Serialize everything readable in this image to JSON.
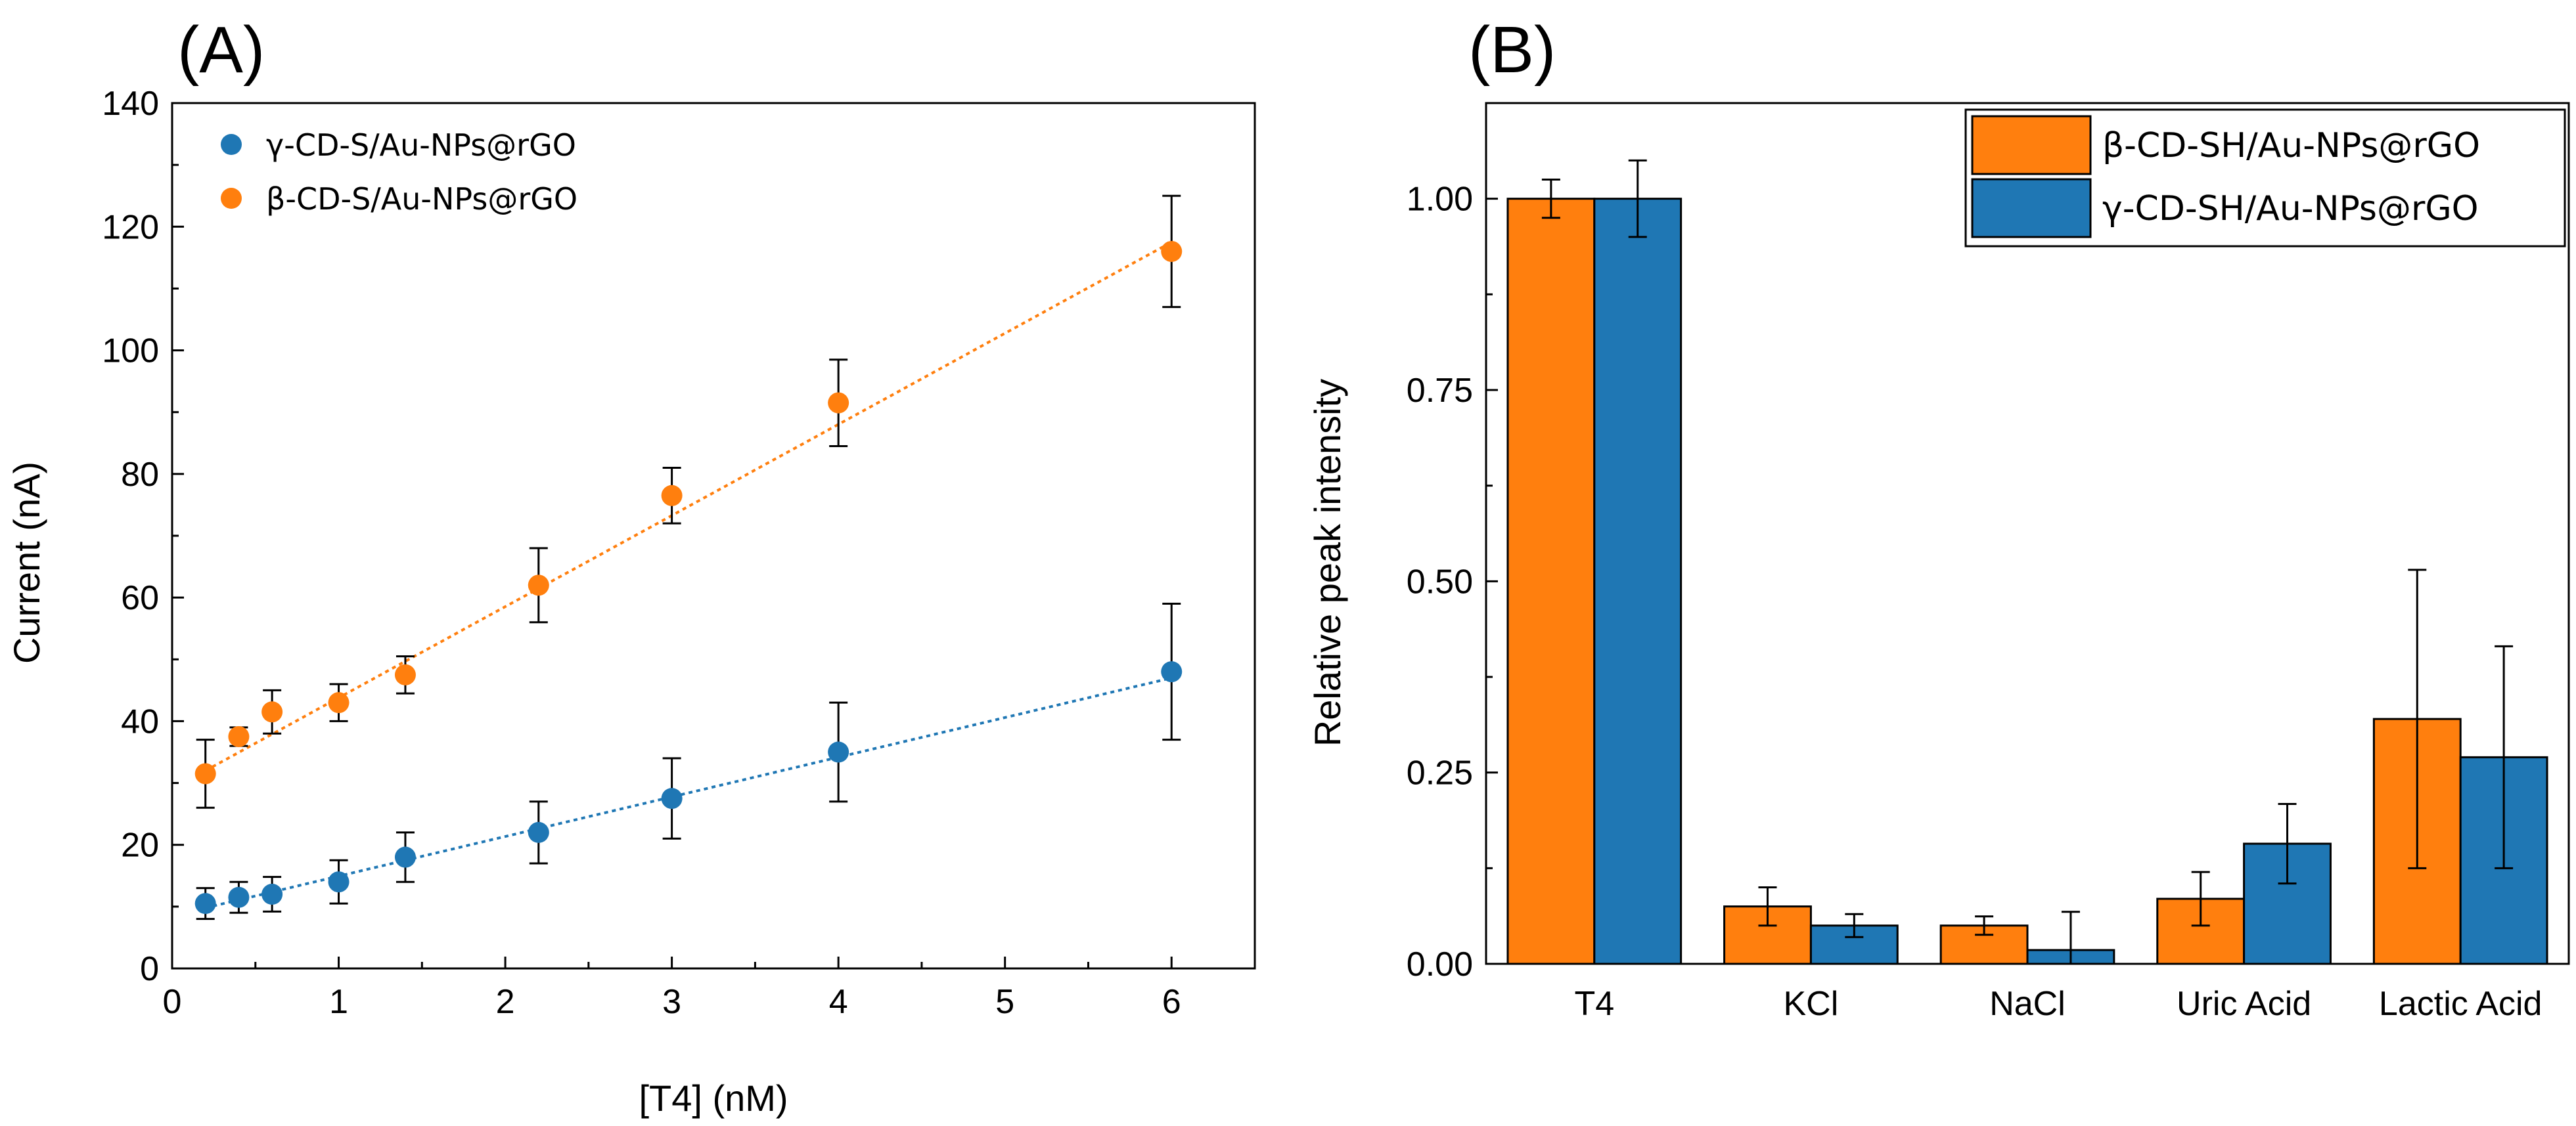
{
  "colors": {
    "orange": "#FF7F0E",
    "blue": "#1F77B4",
    "axis": "#000000"
  },
  "chart_data": [
    {
      "panel_label": "(A)",
      "type": "scatter",
      "title": "",
      "xlabel": "[T4] (nM)",
      "ylabel": "Current (nA)",
      "xlim": [
        0,
        6.5
      ],
      "ylim": [
        0,
        140
      ],
      "xticks": [
        0,
        1,
        2,
        3,
        4,
        5,
        6
      ],
      "yticks": [
        0,
        20,
        40,
        60,
        80,
        100,
        120,
        140
      ],
      "grid": false,
      "legend_position": "top-left",
      "series": [
        {
          "name": "γ-CD-S/Au-NPs@rGO",
          "color": "#1F77B4",
          "x": [
            0.2,
            0.4,
            0.6,
            1.0,
            1.4,
            2.2,
            3.0,
            4.0,
            6.0
          ],
          "y": [
            10.5,
            11.5,
            12.0,
            14.0,
            18.0,
            22.0,
            27.5,
            35.0,
            48.0
          ],
          "err": [
            2.5,
            2.5,
            2.8,
            3.5,
            4.0,
            5.0,
            6.5,
            8.0,
            11.0
          ],
          "fit_line": [
            [
              0.2,
              9.8
            ],
            [
              6.0,
              47.0
            ]
          ]
        },
        {
          "name": "β-CD-S/Au-NPs@rGO",
          "color": "#FF7F0E",
          "x": [
            0.2,
            0.4,
            0.6,
            1.0,
            1.4,
            2.2,
            3.0,
            4.0,
            6.0
          ],
          "y": [
            31.5,
            37.5,
            41.5,
            43.0,
            47.5,
            62.0,
            76.5,
            91.5,
            116.0
          ],
          "err": [
            5.5,
            1.5,
            3.5,
            3.0,
            3.0,
            6.0,
            4.5,
            7.0,
            9.0
          ],
          "fit_line": [
            [
              0.2,
              32.0
            ],
            [
              6.0,
              117.5
            ]
          ]
        }
      ]
    },
    {
      "panel_label": "(B)",
      "type": "bar",
      "title": "",
      "xlabel": "",
      "ylabel": "Relative peak intensity",
      "categories": [
        "T4",
        "KCl",
        "NaCl",
        "Uric Acid",
        "Lactic Acid"
      ],
      "ylim": [
        0,
        1.125
      ],
      "yticks": [
        "0.00",
        "0.25",
        "0.50",
        "0.75",
        "1.00"
      ],
      "grid": false,
      "legend_position": "top-right",
      "series": [
        {
          "name": "β-CD-SH/Au-NPs@rGO",
          "color": "#FF7F0E",
          "values": [
            1.0,
            0.075,
            0.05,
            0.085,
            0.32
          ],
          "err": [
            0.025,
            0.025,
            0.012,
            0.035,
            0.195
          ]
        },
        {
          "name": "γ-CD-SH/Au-NPs@rGO",
          "color": "#1F77B4",
          "values": [
            1.0,
            0.05,
            0.018,
            0.157,
            0.27
          ],
          "err": [
            0.05,
            0.015,
            0.05,
            0.052,
            0.145
          ]
        }
      ]
    }
  ]
}
